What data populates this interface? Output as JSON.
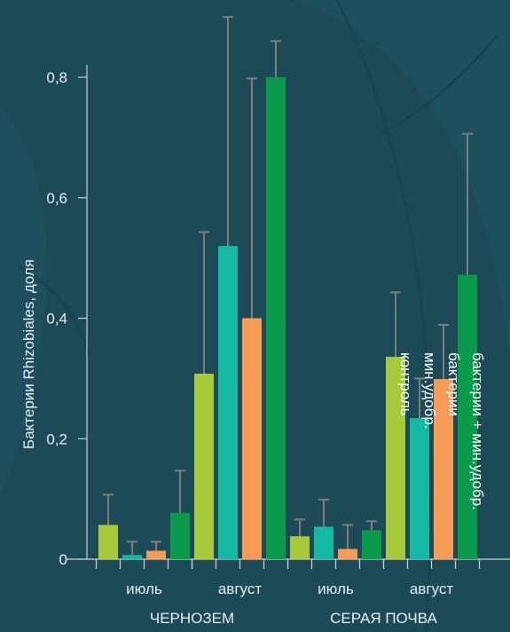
{
  "chart_data": {
    "type": "bar",
    "xlabel": "",
    "ylabel": "Бактерии Rhizobiales, доля",
    "ylim": [
      0,
      0.8
    ],
    "yticks": [
      "0",
      "0,2",
      "0,4",
      "0,6",
      "0,8"
    ],
    "soils": [
      "ЧЕРНОЗЕМ",
      "СЕРАЯ ПОЧВА"
    ],
    "months": [
      "июль",
      "август"
    ],
    "categories": [
      "ЧЕРНОЗЕМ июль",
      "ЧЕРНОЗЕМ август",
      "СЕРАЯ ПОЧВА июль",
      "СЕРАЯ ПОЧВА август"
    ],
    "series": [
      {
        "name": "контроль",
        "color": "#a6c93a",
        "values": [
          0.057,
          0.308,
          0.038,
          0.336
        ],
        "errors": [
          0.05,
          0.235,
          0.028,
          0.107
        ]
      },
      {
        "name": "мин.удобр.",
        "color": "#14b9a3",
        "values": [
          0.007,
          0.52,
          0.054,
          0.234
        ],
        "errors": [
          0.022,
          0.38,
          0.045,
          0.066
        ]
      },
      {
        "name": "бактерии",
        "color": "#f79c57",
        "values": [
          0.014,
          0.4,
          0.017,
          0.299
        ],
        "errors": [
          0.015,
          0.398,
          0.04,
          0.09
        ]
      },
      {
        "name": "бактерии + мин.удобр.",
        "color": "#0a9a4c",
        "values": [
          0.077,
          0.8,
          0.048,
          0.472
        ],
        "errors": [
          0.07,
          0.06,
          0.015,
          0.234
        ]
      }
    ],
    "colors": {
      "background": "#1d4a57",
      "axis": "#c5d3d6",
      "error_bar": "#7e7e7e",
      "text": "#e4eef0"
    }
  }
}
